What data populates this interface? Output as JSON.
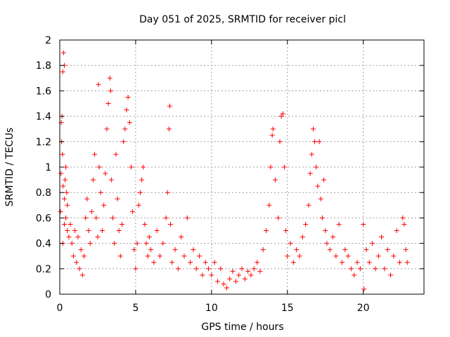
{
  "chart_data": {
    "type": "scatter",
    "title": "Day 051 of 2025, SRMTID for receiver picl",
    "xlabel": "GPS time / hours",
    "ylabel": "SRMTID / TECUs",
    "xlim": [
      0,
      24
    ],
    "ylim": [
      0,
      2
    ],
    "xticks": [
      0,
      5,
      10,
      15,
      20
    ],
    "xtick_labels": [
      "0",
      "5",
      "10",
      "15",
      "20"
    ],
    "yticks": [
      0,
      0.2,
      0.4,
      0.6,
      0.8,
      1,
      1.2,
      1.4,
      1.6,
      1.8,
      2
    ],
    "ytick_labels": [
      "0",
      "0.2",
      "0.4",
      "0.6",
      "0.8",
      "1",
      "1.2",
      "1.4",
      "1.6",
      "1.8",
      "2"
    ],
    "grid": true,
    "marker": "+",
    "color": "#ff0000",
    "series": [
      {
        "name": "SRMTID",
        "points": [
          [
            0.05,
            0.65
          ],
          [
            0.1,
            1.35
          ],
          [
            0.15,
            1.4
          ],
          [
            0.2,
            1.75
          ],
          [
            0.25,
            1.9
          ],
          [
            0.3,
            1.8
          ],
          [
            0.12,
            1.2
          ],
          [
            0.18,
            1.1
          ],
          [
            0.08,
            0.95
          ],
          [
            0.22,
            0.85
          ],
          [
            0.3,
            0.75
          ],
          [
            0.35,
            0.9
          ],
          [
            0.4,
            1.0
          ],
          [
            0.45,
            0.8
          ],
          [
            0.5,
            0.7
          ],
          [
            0.2,
            0.4
          ],
          [
            0.3,
            0.55
          ],
          [
            0.4,
            0.6
          ],
          [
            0.5,
            0.5
          ],
          [
            0.6,
            0.45
          ],
          [
            0.7,
            0.55
          ],
          [
            0.8,
            0.4
          ],
          [
            0.9,
            0.3
          ],
          [
            1.0,
            0.5
          ],
          [
            1.1,
            0.25
          ],
          [
            1.2,
            0.45
          ],
          [
            1.3,
            0.2
          ],
          [
            1.4,
            0.35
          ],
          [
            1.5,
            0.15
          ],
          [
            1.6,
            0.3
          ],
          [
            1.7,
            0.6
          ],
          [
            1.8,
            0.75
          ],
          [
            1.9,
            0.5
          ],
          [
            2.0,
            0.4
          ],
          [
            2.1,
            0.65
          ],
          [
            2.2,
            0.9
          ],
          [
            2.3,
            1.1
          ],
          [
            2.4,
            0.6
          ],
          [
            2.5,
            0.45
          ],
          [
            2.55,
            1.65
          ],
          [
            2.6,
            1.0
          ],
          [
            2.7,
            0.8
          ],
          [
            2.8,
            0.5
          ],
          [
            2.9,
            0.7
          ],
          [
            3.0,
            0.95
          ],
          [
            3.1,
            1.3
          ],
          [
            3.2,
            1.5
          ],
          [
            3.3,
            1.7
          ],
          [
            3.35,
            1.6
          ],
          [
            3.4,
            0.9
          ],
          [
            3.5,
            0.6
          ],
          [
            3.6,
            0.4
          ],
          [
            3.7,
            1.1
          ],
          [
            3.8,
            0.75
          ],
          [
            3.9,
            0.5
          ],
          [
            4.0,
            0.3
          ],
          [
            4.1,
            0.55
          ],
          [
            4.2,
            1.2
          ],
          [
            4.3,
            1.3
          ],
          [
            4.4,
            1.45
          ],
          [
            4.5,
            1.55
          ],
          [
            4.6,
            1.35
          ],
          [
            4.7,
            1.0
          ],
          [
            4.8,
            0.65
          ],
          [
            4.9,
            0.35
          ],
          [
            5.0,
            0.2
          ],
          [
            5.1,
            0.4
          ],
          [
            5.2,
            0.7
          ],
          [
            5.3,
            0.8
          ],
          [
            5.4,
            0.9
          ],
          [
            5.5,
            1.0
          ],
          [
            5.6,
            0.55
          ],
          [
            5.7,
            0.4
          ],
          [
            5.8,
            0.3
          ],
          [
            5.9,
            0.45
          ],
          [
            6.0,
            0.35
          ],
          [
            6.2,
            0.25
          ],
          [
            6.4,
            0.5
          ],
          [
            6.6,
            0.3
          ],
          [
            6.8,
            0.4
          ],
          [
            7.0,
            0.6
          ],
          [
            7.1,
            0.8
          ],
          [
            7.2,
            1.3
          ],
          [
            7.25,
            1.48
          ],
          [
            7.3,
            0.55
          ],
          [
            7.4,
            0.25
          ],
          [
            7.6,
            0.35
          ],
          [
            7.8,
            0.2
          ],
          [
            8.0,
            0.45
          ],
          [
            8.2,
            0.3
          ],
          [
            8.4,
            0.6
          ],
          [
            8.6,
            0.25
          ],
          [
            8.8,
            0.35
          ],
          [
            9.0,
            0.2
          ],
          [
            9.2,
            0.3
          ],
          [
            9.4,
            0.15
          ],
          [
            9.6,
            0.25
          ],
          [
            9.8,
            0.2
          ],
          [
            10.0,
            0.15
          ],
          [
            10.2,
            0.25
          ],
          [
            10.4,
            0.1
          ],
          [
            10.6,
            0.2
          ],
          [
            10.8,
            0.08
          ],
          [
            11.0,
            0.05
          ],
          [
            11.2,
            0.12
          ],
          [
            11.4,
            0.18
          ],
          [
            11.6,
            0.1
          ],
          [
            11.8,
            0.15
          ],
          [
            12.0,
            0.2
          ],
          [
            12.2,
            0.12
          ],
          [
            12.4,
            0.18
          ],
          [
            12.6,
            0.15
          ],
          [
            12.8,
            0.2
          ],
          [
            13.0,
            0.25
          ],
          [
            13.2,
            0.18
          ],
          [
            13.4,
            0.35
          ],
          [
            13.6,
            0.5
          ],
          [
            13.8,
            0.7
          ],
          [
            13.9,
            1.0
          ],
          [
            14.0,
            1.25
          ],
          [
            14.05,
            1.3
          ],
          [
            14.2,
            0.9
          ],
          [
            14.4,
            0.6
          ],
          [
            14.5,
            1.2
          ],
          [
            14.6,
            1.4
          ],
          [
            14.7,
            1.42
          ],
          [
            14.8,
            1.0
          ],
          [
            14.9,
            0.5
          ],
          [
            15.0,
            0.3
          ],
          [
            15.2,
            0.4
          ],
          [
            15.4,
            0.25
          ],
          [
            15.6,
            0.35
          ],
          [
            15.8,
            0.3
          ],
          [
            16.0,
            0.45
          ],
          [
            16.2,
            0.55
          ],
          [
            16.4,
            0.7
          ],
          [
            16.5,
            0.95
          ],
          [
            16.6,
            1.1
          ],
          [
            16.7,
            1.3
          ],
          [
            16.8,
            1.2
          ],
          [
            16.9,
            1.0
          ],
          [
            17.0,
            0.85
          ],
          [
            17.1,
            1.2
          ],
          [
            17.2,
            0.75
          ],
          [
            17.3,
            0.6
          ],
          [
            17.4,
            0.9
          ],
          [
            17.5,
            0.5
          ],
          [
            17.6,
            0.4
          ],
          [
            17.8,
            0.35
          ],
          [
            18.0,
            0.45
          ],
          [
            18.2,
            0.3
          ],
          [
            18.4,
            0.55
          ],
          [
            18.6,
            0.25
          ],
          [
            18.8,
            0.35
          ],
          [
            19.0,
            0.3
          ],
          [
            19.2,
            0.2
          ],
          [
            19.4,
            0.15
          ],
          [
            19.6,
            0.25
          ],
          [
            19.8,
            0.2
          ],
          [
            20.0,
            0.55
          ],
          [
            20.05,
            0.04
          ],
          [
            20.2,
            0.35
          ],
          [
            20.4,
            0.25
          ],
          [
            20.6,
            0.4
          ],
          [
            20.8,
            0.2
          ],
          [
            21.0,
            0.3
          ],
          [
            21.2,
            0.45
          ],
          [
            21.4,
            0.2
          ],
          [
            21.6,
            0.35
          ],
          [
            21.8,
            0.15
          ],
          [
            22.0,
            0.3
          ],
          [
            22.2,
            0.5
          ],
          [
            22.4,
            0.25
          ],
          [
            22.6,
            0.6
          ],
          [
            22.7,
            0.55
          ],
          [
            22.8,
            0.35
          ],
          [
            22.9,
            0.25
          ]
        ]
      }
    ]
  }
}
